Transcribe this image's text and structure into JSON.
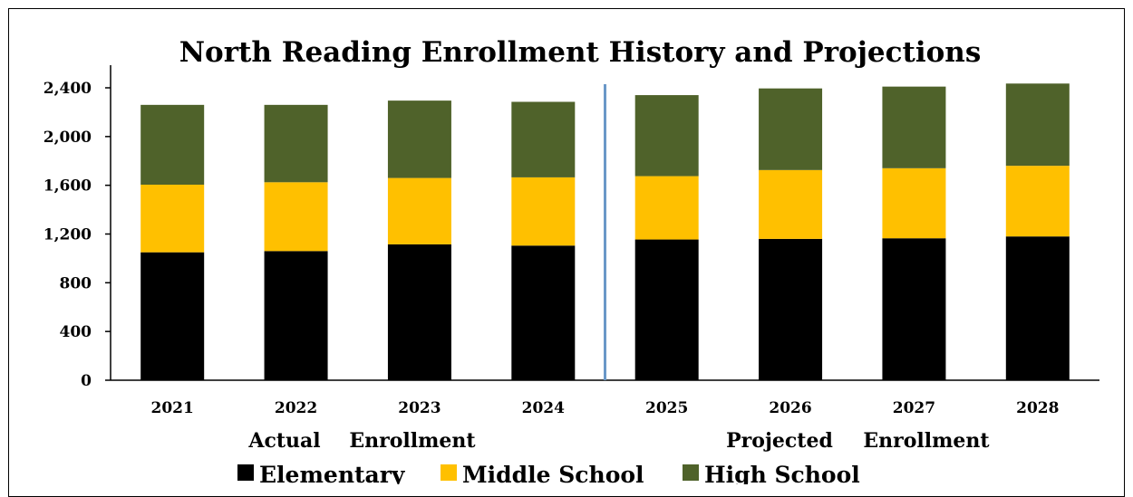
{
  "chart_data": {
    "type": "bar",
    "stacked": true,
    "title": "North Reading Enrollment History and Projections",
    "categories": [
      "2021",
      "2022",
      "2023",
      "2024",
      "2025",
      "2026",
      "2027",
      "2028"
    ],
    "series": [
      {
        "name": "Elementary",
        "color": "#000000",
        "values": [
          1050,
          1060,
          1115,
          1105,
          1155,
          1160,
          1165,
          1180
        ]
      },
      {
        "name": "Middle School",
        "color": "#ffc000",
        "values": [
          555,
          565,
          545,
          560,
          520,
          565,
          575,
          580
        ]
      },
      {
        "name": "High School",
        "color": "#4f622a",
        "values": [
          655,
          635,
          635,
          620,
          665,
          670,
          670,
          675
        ]
      }
    ],
    "yticks": [
      "0",
      "400",
      "800",
      "1,200",
      "1,600",
      "2,000",
      "2,400"
    ],
    "ylim": [
      0,
      2600
    ],
    "group_labels": [
      {
        "words": [
          "Actual",
          "Enrollment"
        ]
      },
      {
        "words": [
          "Projected",
          "Enrollment"
        ]
      }
    ],
    "divider_after_category": "2024",
    "divider_color": "#6a98c8",
    "grid": false,
    "legend_position": "bottom"
  }
}
